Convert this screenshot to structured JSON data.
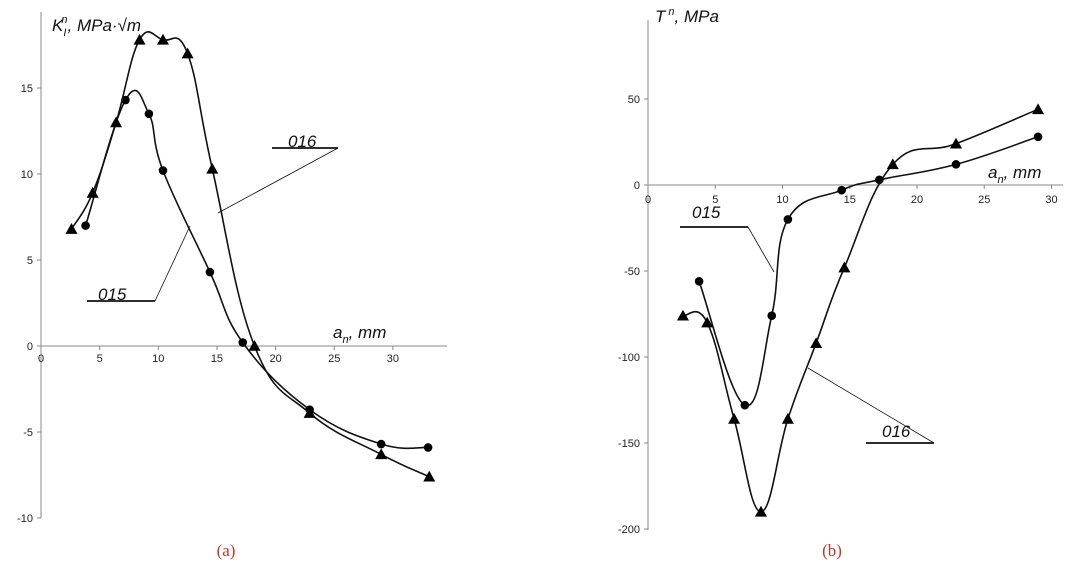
{
  "chart_data": [
    {
      "type": "line",
      "panel_caption": "(a)",
      "ylabel": {
        "main": "K",
        "sub": "I",
        "sup": "n",
        "units": ", MPa·√m"
      },
      "xlabel": {
        "main": "a",
        "sub": "n",
        "units": ", mm"
      },
      "xlim": [
        0,
        35
      ],
      "ylim": [
        -10,
        18
      ],
      "xticks": [
        0,
        5,
        10,
        15,
        20,
        25,
        30
      ],
      "yticks": [
        -10,
        -5,
        0,
        5,
        10,
        15
      ],
      "xtick_labels": [
        "0",
        "5",
        "10",
        "15",
        "20",
        "25",
        "30"
      ],
      "ytick_labels": [
        "-10",
        "-5",
        "0",
        "5",
        "10",
        "15"
      ],
      "series": [
        {
          "name": "015",
          "marker": "circle",
          "x": [
            3.8,
            7.2,
            9.2,
            10.4,
            14.4,
            17.2,
            22.9,
            29.0,
            33.0
          ],
          "y": [
            7.0,
            14.3,
            13.5,
            10.2,
            4.3,
            0.2,
            -3.7,
            -5.7,
            -5.9
          ]
        },
        {
          "name": "016",
          "marker": "triangle",
          "x": [
            2.6,
            4.4,
            6.4,
            8.4,
            10.4,
            12.5,
            14.6,
            18.2,
            22.9,
            29.0,
            33.1
          ],
          "y": [
            6.8,
            8.9,
            13.0,
            17.8,
            17.8,
            17.0,
            10.3,
            0.0,
            -3.9,
            -6.3,
            -7.6
          ]
        }
      ]
    },
    {
      "type": "line",
      "panel_caption": "(b)",
      "ylabel": {
        "main": "T",
        "sup": "n",
        "units": ", MPa"
      },
      "xlabel": {
        "main": "a",
        "sub": "n",
        "units": ", mm"
      },
      "xlim": [
        0,
        30
      ],
      "ylim": [
        -200,
        90
      ],
      "xticks": [
        0,
        5,
        10,
        15,
        20,
        25,
        30
      ],
      "yticks": [
        -200,
        -150,
        -100,
        -50,
        0,
        50
      ],
      "xtick_labels": [
        "0",
        "5",
        "10",
        "15",
        "20",
        "25",
        "30"
      ],
      "ytick_labels": [
        "-200",
        "-150",
        "-100",
        "-50",
        "0",
        "50"
      ],
      "series": [
        {
          "name": "015",
          "marker": "circle",
          "x": [
            3.8,
            7.2,
            9.2,
            10.4,
            14.4,
            17.2,
            22.9,
            29.0
          ],
          "y": [
            -56,
            -128,
            -76,
            -20,
            -3,
            3,
            12,
            28
          ]
        },
        {
          "name": "016",
          "marker": "triangle",
          "x": [
            2.6,
            4.4,
            6.4,
            8.4,
            10.4,
            12.5,
            14.6,
            18.2,
            22.9,
            29.0
          ],
          "y": [
            -76,
            -80,
            -136,
            -190,
            -136,
            -92,
            -48,
            12,
            24,
            44
          ]
        }
      ]
    }
  ]
}
